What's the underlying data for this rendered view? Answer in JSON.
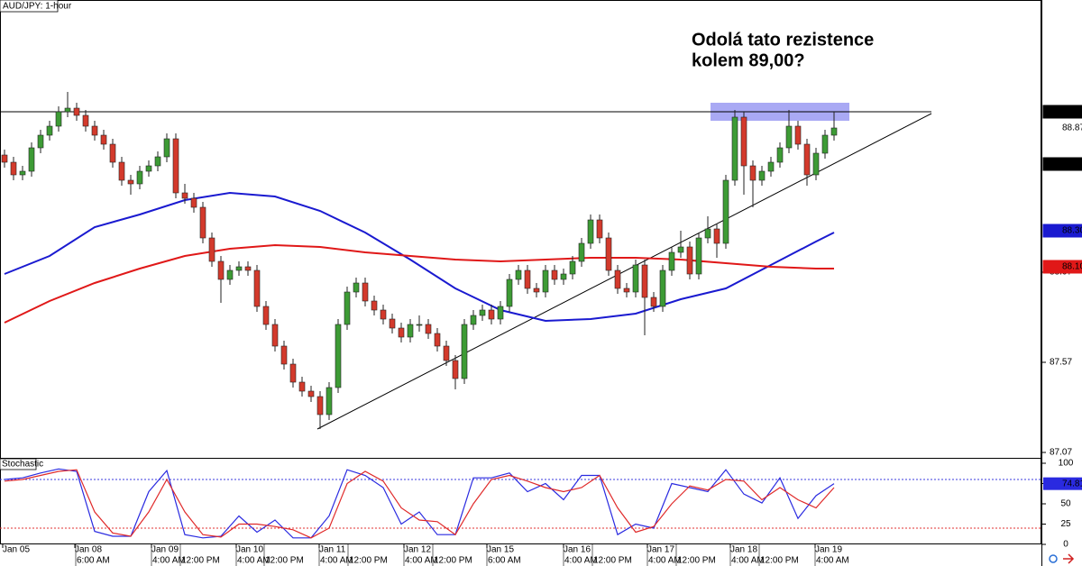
{
  "chart_data": {
    "type": "candlestick",
    "title": "AUD/JPY: 1-hour",
    "annotation": [
      "Odolá tato rezistence",
      "kolem 89,00?"
    ],
    "xlim": [
      -0.5,
      115
    ],
    "ylim": [
      87.04,
      89.58
    ],
    "yticks": [
      87.07,
      87.57,
      88.07
    ],
    "xticks": [
      {
        "value": -0.2,
        "label": "Jan 05"
      },
      {
        "value": 7.8,
        "label": "Jan 08"
      },
      {
        "value": 16.3,
        "label": "Jan 09"
      },
      {
        "value": 25.7,
        "label": "Jan 10"
      },
      {
        "value": 34.9,
        "label": "Jan 11"
      },
      {
        "value": 44.3,
        "label": "Jan 12"
      },
      {
        "value": 53.5,
        "label": "Jan 15"
      },
      {
        "value": 62,
        "label": "Jan 16"
      },
      {
        "value": 71.3,
        "label": "Jan 17"
      },
      {
        "value": 80.5,
        "label": "Jan 18"
      },
      {
        "value": 89.9,
        "label": "Jan 19"
      }
    ],
    "xticks2": [
      {
        "value": 7.9,
        "label": "6:00 AM"
      },
      {
        "value": 16.3,
        "label": "4:00 AM"
      },
      {
        "value": 19.5,
        "label": "12:00 PM"
      },
      {
        "value": 25.7,
        "label": "4:00 AM"
      },
      {
        "value": 28.8,
        "label": "12:00 PM"
      },
      {
        "value": 34.9,
        "label": "4:00 AM"
      },
      {
        "value": 38.1,
        "label": "12:00 PM"
      },
      {
        "value": 44.3,
        "label": "4:00 AM"
      },
      {
        "value": 47.5,
        "label": "12:00 PM"
      },
      {
        "value": 53.5,
        "label": "6:00 AM"
      },
      {
        "value": 62,
        "label": "4:00 AM"
      },
      {
        "value": 65.2,
        "label": "12:00 PM"
      },
      {
        "value": 71.3,
        "label": "4:00 AM"
      },
      {
        "value": 74.5,
        "label": "12:00 PM"
      },
      {
        "value": 80.5,
        "label": "4:00 AM"
      },
      {
        "value": 83.7,
        "label": "12:00 PM"
      },
      {
        "value": 89.9,
        "label": "4:00 AM"
      }
    ],
    "open": [
      88.72,
      88.68,
      88.61,
      88.63,
      88.76,
      88.83,
      88.88,
      88.96,
      88.98,
      88.94,
      88.88,
      88.83,
      88.78,
      88.68,
      88.58,
      88.56,
      88.63,
      88.66,
      88.71,
      88.81,
      88.51,
      88.48,
      88.43,
      88.26,
      88.13,
      88.03,
      88.08,
      88.1,
      88.08,
      87.88,
      87.78,
      87.66,
      87.56,
      87.46,
      87.41,
      87.38,
      87.28,
      87.43,
      87.78,
      87.96,
      88.01,
      87.91,
      87.86,
      87.81,
      87.76,
      87.71,
      87.78,
      87.78,
      87.73,
      87.66,
      87.58,
      87.48,
      87.78,
      87.83,
      87.86,
      87.81,
      87.88,
      88.03,
      88.08,
      87.98,
      87.96,
      88.08,
      88.03,
      88.06,
      88.13,
      88.23,
      88.36,
      88.26,
      88.08,
      87.98,
      87.96,
      88.11,
      87.93,
      87.88,
      88.08,
      88.18,
      88.21,
      88.06,
      88.26,
      88.31,
      88.23,
      88.58,
      88.93,
      88.66,
      88.58,
      88.63,
      88.68,
      88.76,
      88.88,
      88.78,
      88.61,
      88.73,
      88.83
    ],
    "high": [
      88.75,
      88.71,
      88.66,
      88.79,
      88.86,
      88.91,
      88.99,
      89.07,
      89.01,
      88.97,
      88.91,
      88.86,
      88.81,
      88.71,
      88.61,
      88.66,
      88.69,
      88.74,
      88.84,
      88.84,
      88.56,
      88.51,
      88.46,
      88.29,
      88.16,
      88.11,
      88.13,
      88.13,
      88.11,
      87.91,
      87.81,
      87.69,
      87.59,
      87.49,
      87.44,
      87.41,
      87.46,
      87.81,
      87.99,
      88.04,
      88.04,
      87.94,
      87.89,
      87.84,
      87.79,
      87.81,
      87.83,
      87.81,
      87.76,
      87.69,
      87.61,
      87.81,
      87.86,
      87.89,
      87.89,
      87.91,
      88.06,
      88.11,
      88.11,
      88.01,
      88.11,
      88.11,
      88.09,
      88.16,
      88.26,
      88.39,
      88.39,
      88.29,
      88.11,
      88.01,
      88.14,
      88.14,
      87.96,
      88.11,
      88.21,
      88.3,
      88.24,
      88.29,
      88.38,
      88.34,
      88.61,
      88.97,
      88.96,
      88.69,
      88.66,
      88.71,
      88.79,
      88.97,
      88.91,
      88.81,
      88.76,
      88.86,
      88.96
    ],
    "low": [
      88.65,
      88.58,
      88.58,
      88.6,
      88.73,
      88.8,
      88.85,
      88.93,
      88.91,
      88.85,
      88.8,
      88.75,
      88.65,
      88.55,
      88.5,
      88.53,
      88.6,
      88.63,
      88.68,
      88.48,
      88.45,
      88.4,
      88.23,
      88.1,
      87.9,
      88.0,
      88.05,
      88.05,
      87.85,
      87.75,
      87.63,
      87.53,
      87.43,
      87.38,
      87.35,
      87.2,
      87.25,
      87.4,
      87.75,
      87.93,
      87.88,
      87.83,
      87.78,
      87.73,
      87.68,
      87.68,
      87.74,
      87.7,
      87.63,
      87.55,
      87.42,
      87.45,
      87.75,
      87.8,
      87.78,
      87.78,
      87.85,
      88.0,
      87.95,
      87.93,
      87.93,
      88.0,
      88.0,
      88.03,
      88.1,
      88.2,
      88.23,
      88.05,
      87.95,
      87.93,
      87.93,
      87.72,
      87.85,
      87.85,
      88.05,
      88.15,
      88.03,
      88.03,
      88.23,
      88.15,
      88.2,
      88.55,
      88.5,
      88.43,
      88.55,
      88.6,
      88.65,
      88.73,
      88.75,
      88.55,
      88.58,
      88.7,
      88.8
    ],
    "close": [
      88.68,
      88.61,
      88.63,
      88.76,
      88.83,
      88.88,
      88.96,
      88.98,
      88.94,
      88.88,
      88.83,
      88.78,
      88.68,
      88.58,
      88.56,
      88.63,
      88.66,
      88.71,
      88.81,
      88.51,
      88.48,
      88.43,
      88.26,
      88.13,
      88.03,
      88.08,
      88.1,
      88.08,
      87.88,
      87.78,
      87.66,
      87.56,
      87.46,
      87.41,
      87.38,
      87.28,
      87.43,
      87.78,
      87.96,
      88.01,
      87.91,
      87.86,
      87.81,
      87.76,
      87.71,
      87.78,
      87.78,
      87.73,
      87.66,
      87.58,
      87.48,
      87.78,
      87.83,
      87.86,
      87.81,
      87.88,
      88.03,
      88.08,
      87.98,
      87.96,
      88.08,
      88.03,
      88.06,
      88.13,
      88.23,
      88.36,
      88.26,
      88.08,
      87.98,
      87.96,
      88.11,
      87.93,
      87.88,
      88.08,
      88.18,
      88.21,
      88.06,
      88.26,
      88.31,
      88.23,
      88.58,
      88.93,
      88.66,
      88.58,
      88.63,
      88.68,
      88.76,
      88.88,
      88.78,
      88.61,
      88.73,
      88.83,
      88.87
    ],
    "up_color": "#3d9b35",
    "down_color": "#d33a2c",
    "series": [
      {
        "color": "#1a1ad0",
        "x": [
          0,
          5,
          10,
          15,
          20,
          25,
          30,
          35,
          40,
          45,
          50,
          55,
          60,
          65,
          70,
          75,
          80,
          85,
          90,
          92
        ],
        "values": [
          88.06,
          88.16,
          88.32,
          88.39,
          88.47,
          88.51,
          88.49,
          88.41,
          88.29,
          88.14,
          87.98,
          87.86,
          87.8,
          87.81,
          87.84,
          87.92,
          87.98,
          88.11,
          88.24,
          88.29
        ]
      },
      {
        "color": "#e01818",
        "x": [
          0,
          5,
          10,
          15,
          20,
          25,
          30,
          35,
          40,
          45,
          50,
          55,
          60,
          65,
          70,
          75,
          80,
          85,
          90,
          92
        ],
        "values": [
          87.79,
          87.91,
          88.01,
          88.09,
          88.16,
          88.2,
          88.22,
          88.21,
          88.18,
          88.16,
          88.14,
          88.13,
          88.14,
          88.15,
          88.15,
          88.14,
          88.12,
          88.1,
          88.09,
          88.09
        ]
      }
    ],
    "price_markers": [
      {
        "value": 88.96,
        "color": "#000000"
      },
      {
        "value": 88.87,
        "color": "#ffffff"
      },
      {
        "value": 88.67,
        "color": "#000000"
      },
      {
        "value": 88.3,
        "label": "88.30",
        "color": "#1a1ad0"
      },
      {
        "value": 88.1,
        "label": "88.10",
        "color": "#e01818"
      }
    ],
    "resistance": {
      "x": [
        78.3,
        93.7
      ],
      "y": [
        88.91,
        89.01
      ],
      "color": "#8c8cf0"
    },
    "hline": {
      "value": 88.96,
      "x": [
        -0.5,
        102.8
      ]
    },
    "trendline": {
      "x": [
        34.7,
        102.8
      ],
      "y": [
        87.2,
        88.95
      ]
    },
    "stochastic": {
      "title": "Stochastic",
      "ylim": [
        0,
        100
      ],
      "yticks": [
        0,
        25,
        50,
        75,
        100
      ],
      "levels": [
        {
          "value": 80,
          "color": "#3a3adf"
        },
        {
          "value": 20,
          "color": "#e03030"
        }
      ],
      "x": [
        0,
        2,
        4,
        6,
        8,
        10,
        12,
        14,
        16,
        18,
        20,
        22,
        24,
        26,
        28,
        30,
        32,
        34,
        36,
        38,
        40,
        42,
        44,
        46,
        48,
        50,
        52,
        54,
        56,
        58,
        60,
        62,
        64,
        66,
        68,
        70,
        72,
        74,
        76,
        78,
        80,
        82,
        84,
        86,
        88,
        90,
        92
      ],
      "series": [
        {
          "color": "#2a2ae0",
          "values": [
            80,
            82,
            88,
            93,
            90,
            16,
            10,
            10,
            65,
            91,
            12,
            8,
            10,
            35,
            15,
            30,
            8,
            8,
            35,
            92,
            85,
            70,
            25,
            40,
            12,
            12,
            82,
            82,
            88,
            65,
            75,
            55,
            85,
            85,
            12,
            25,
            20,
            75,
            70,
            65,
            92,
            62,
            51,
            82,
            32,
            60,
            74.81
          ]
        },
        {
          "color": "#e02a2a",
          "values": [
            78,
            80,
            85,
            90,
            92,
            40,
            14,
            10,
            40,
            80,
            40,
            12,
            9,
            25,
            25,
            22,
            18,
            8,
            20,
            75,
            90,
            78,
            45,
            30,
            28,
            12,
            50,
            80,
            85,
            78,
            70,
            65,
            70,
            85,
            45,
            15,
            22,
            50,
            72,
            67,
            80,
            78,
            55,
            70,
            55,
            45,
            70
          ]
        }
      ]
    }
  }
}
